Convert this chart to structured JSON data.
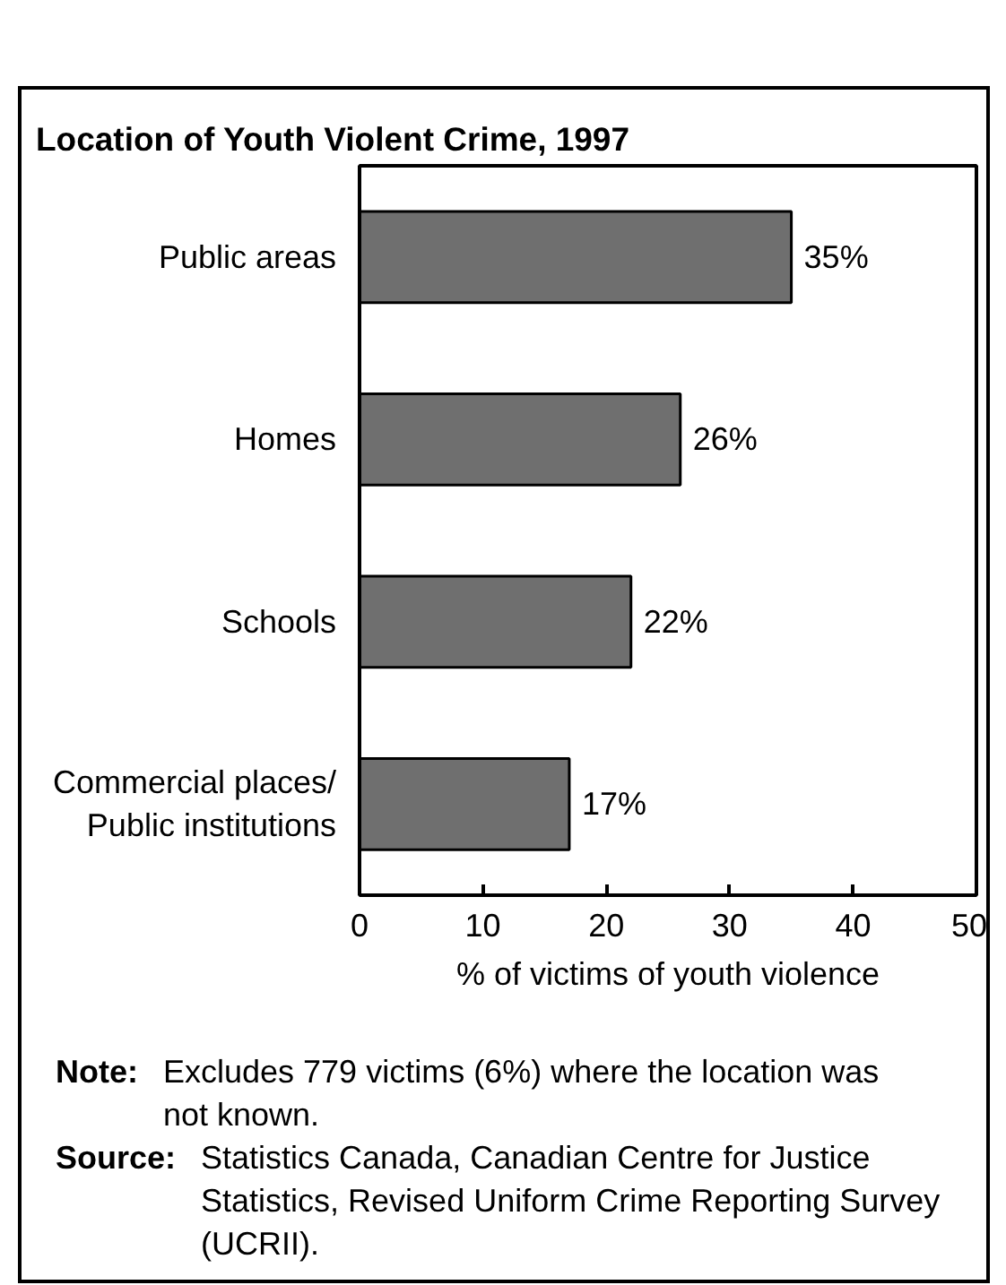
{
  "chart_data": {
    "type": "bar",
    "orientation": "horizontal",
    "title": "Location of Youth Violent Crime, 1997",
    "categories": [
      "Public areas",
      "Homes",
      "Schools",
      "Commercial places/\nPublic institutions"
    ],
    "values": [
      35,
      26,
      22,
      17
    ],
    "value_labels": [
      "35%",
      "26%",
      "22%",
      "17%"
    ],
    "color": "#6f6f6f",
    "xlim": [
      0,
      50
    ],
    "xticks": [
      0,
      10,
      20,
      30,
      40,
      50
    ],
    "xlabel": "% of victims of youth violence",
    "annotations": [
      "Note: Excludes 779 victims (6%) where the location was not known.",
      "Source: Statistics Canada, Canadian Centre for Justice Statistics, Revised Uniform Crime Reporting Survey (UCRII)."
    ]
  }
}
